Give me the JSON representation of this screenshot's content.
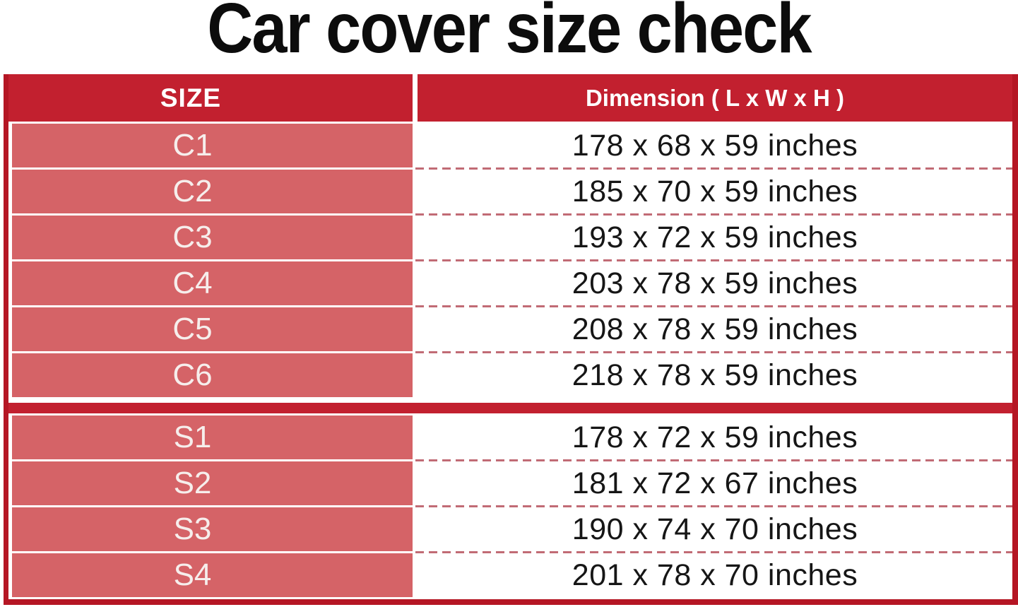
{
  "title": "Car cover size check",
  "colors": {
    "header_red": "#c2202f",
    "border_red": "#b51624",
    "cell_salmon": "#d56367",
    "dashed_separator": "#c16b75",
    "cell_label_text": "#f6eeec",
    "dimension_text": "#161616",
    "title_text": "#0c0c0c"
  },
  "table": {
    "size_header": "SIZE",
    "dimension_header": "Dimension ( L x W x H )",
    "sections": [
      {
        "name": "C",
        "rows": [
          {
            "size": "C1",
            "dimension": "178 x 68 x 59 inches"
          },
          {
            "size": "C2",
            "dimension": "185 x 70 x 59 inches"
          },
          {
            "size": "C3",
            "dimension": "193 x 72 x 59 inches"
          },
          {
            "size": "C4",
            "dimension": "203 x 78 x 59 inches"
          },
          {
            "size": "C5",
            "dimension": "208 x 78 x 59 inches"
          },
          {
            "size": "C6",
            "dimension": "218 x 78 x 59 inches"
          }
        ]
      },
      {
        "name": "S",
        "rows": [
          {
            "size": "S1",
            "dimension": "178 x 72 x 59 inches"
          },
          {
            "size": "S2",
            "dimension": "181 x 72 x 67 inches"
          },
          {
            "size": "S3",
            "dimension": "190 x 74 x 70 inches"
          },
          {
            "size": "S4",
            "dimension": "201 x 78 x 70 inches"
          }
        ]
      }
    ]
  },
  "chart_data": {
    "type": "table",
    "title": "Car cover size check",
    "columns": [
      "SIZE",
      "Dimension ( L x W x H )"
    ],
    "rows": [
      [
        "C1",
        "178 x 68 x 59 inches"
      ],
      [
        "C2",
        "185 x 70 x 59 inches"
      ],
      [
        "C3",
        "193 x 72 x 59 inches"
      ],
      [
        "C4",
        "203 x 78 x 59 inches"
      ],
      [
        "C5",
        "208 x 78 x 59 inches"
      ],
      [
        "C6",
        "218 x 78 x 59 inches"
      ],
      [
        "S1",
        "178 x 72 x 59 inches"
      ],
      [
        "S2",
        "181 x 72 x 67 inches"
      ],
      [
        "S3",
        "190 x 74 x 70 inches"
      ],
      [
        "S4",
        "201 x 78 x 70 inches"
      ]
    ],
    "layout_hints": {
      "section_breaks_after_row": 6,
      "size_column_style": "salmon filled cells, light text",
      "dimension_column_style": "white cells, dashed red separators",
      "header_style": "dark red background, white bold text"
    }
  }
}
